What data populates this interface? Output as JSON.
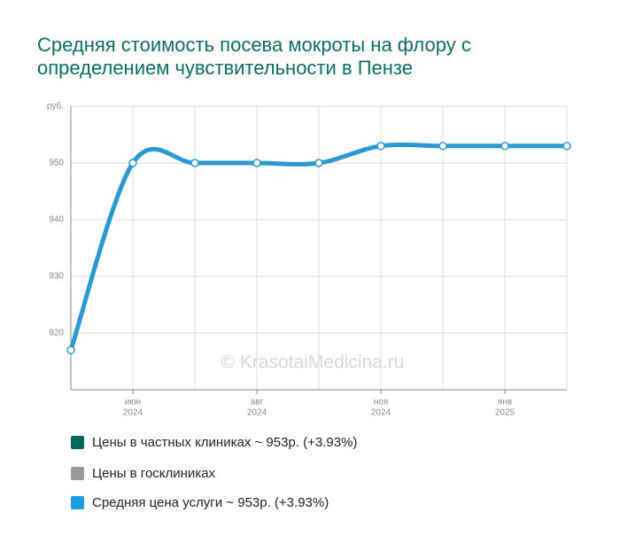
{
  "chart_data": {
    "type": "line",
    "title_lines": [
      "Средняя стоимость посева мокроты на флору с",
      "определением чувствительности в Пензе"
    ],
    "y_unit": "руб.",
    "watermark": "© KrasotaiMedicina.ru",
    "categories": [
      null,
      "июн",
      null,
      "авг",
      null,
      "ноя",
      null,
      "янв",
      null
    ],
    "category_years": [
      null,
      "2024",
      null,
      "2024",
      null,
      "2024",
      null,
      "2025",
      null
    ],
    "series": [
      {
        "name": "Средняя цена услуги ~ 953р. (+3.93%)",
        "color": "#2a96d2",
        "values": [
          917,
          950,
          950,
          950,
          950,
          953,
          953,
          953,
          953
        ]
      }
    ],
    "legend": [
      {
        "name": "Цены в частных клиниках ~ 953р. (+3.93%)",
        "color": "#00695c"
      },
      {
        "name": "Цены в госклиниках",
        "color": "#999999"
      },
      {
        "name": "Средняя цена услуги ~ 953р. (+3.93%)",
        "color": "#1e9be0"
      }
    ],
    "ylim": [
      910,
      960
    ],
    "yticks": [
      920,
      930,
      940,
      950
    ],
    "grid": true
  }
}
